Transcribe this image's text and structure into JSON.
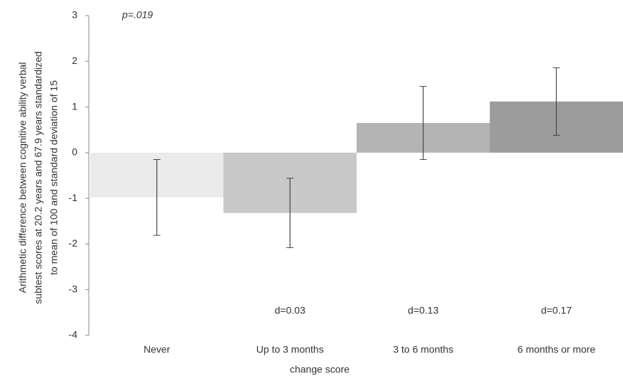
{
  "chart_data": {
    "type": "bar",
    "categories": [
      "Never",
      "Up to 3 months",
      "3 to 6 months",
      "6 months or more"
    ],
    "values": [
      -0.98,
      -1.32,
      0.65,
      1.12
    ],
    "errors": [
      0.83,
      0.76,
      0.8,
      0.74
    ],
    "colors": [
      "#ebebeb",
      "#c8c8c8",
      "#b4b4b4",
      "#9c9c9c"
    ],
    "ylim": [
      -4,
      3
    ],
    "yticks": [
      -4,
      -3,
      -2,
      -1,
      0,
      1,
      2,
      3
    ],
    "y_label": [
      "Arithmetic difference between cognitive ability verbal",
      "subtest scores at 20.2 years and 67.9 years standardized",
      "to mean of 100 and standard deviation of 15"
    ],
    "x_label": "change score",
    "annotations": [
      "p=.019",
      "d=0.03",
      "d=0.13",
      "d=0.17"
    ]
  }
}
